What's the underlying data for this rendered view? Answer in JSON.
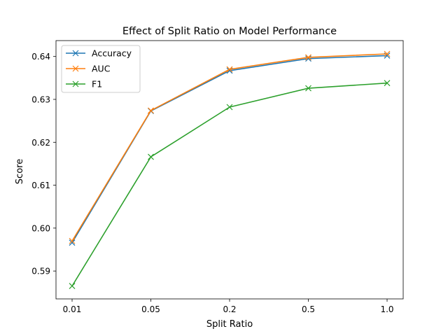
{
  "chart_data": {
    "type": "line",
    "title": "Effect of Split Ratio on Model Performance",
    "xlabel": "Split Ratio",
    "ylabel": "Score",
    "categories": [
      "0.01",
      "0.05",
      "0.2",
      "0.5",
      "1.0"
    ],
    "ylim": [
      0.5835,
      0.6437
    ],
    "yticks": [
      0.59,
      0.6,
      0.61,
      0.62,
      0.63,
      0.64
    ],
    "ytick_labels": [
      "0.59",
      "0.60",
      "0.61",
      "0.62",
      "0.63",
      "0.64"
    ],
    "grid": false,
    "legend_position": "top-left",
    "marker": "x",
    "series": [
      {
        "name": "Accuracy",
        "color": "#1f77b4",
        "values": [
          0.5966,
          0.6273,
          0.6367,
          0.6395,
          0.6402
        ]
      },
      {
        "name": "AUC",
        "color": "#ff7f0e",
        "values": [
          0.597,
          0.6274,
          0.637,
          0.6398,
          0.6406
        ]
      },
      {
        "name": "F1",
        "color": "#2ca02c",
        "values": [
          0.5865,
          0.6166,
          0.6282,
          0.6326,
          0.6338
        ]
      }
    ]
  }
}
